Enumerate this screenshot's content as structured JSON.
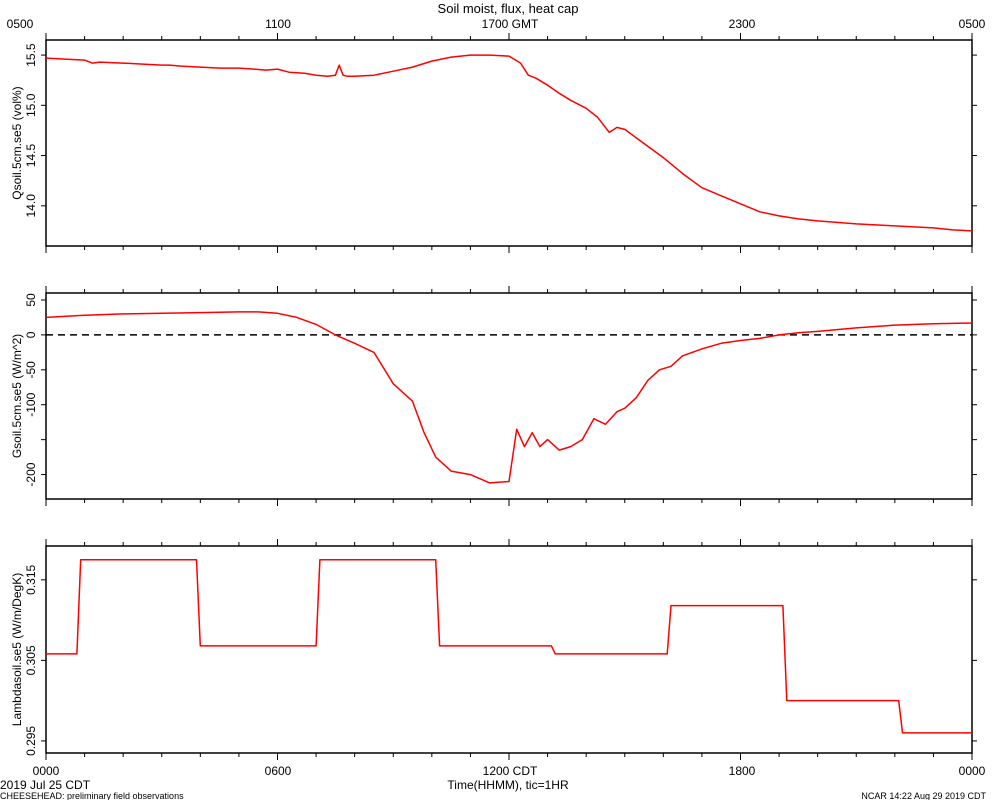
{
  "figure": {
    "title": "Soil moist, flux, heat cap",
    "top_axis_ticks": [
      "0500",
      "1100",
      "1700 GMT",
      "2300",
      "0500"
    ],
    "bottom_axis_ticks": [
      "0000",
      "0600",
      "1200 CDT",
      "1800",
      "0000"
    ],
    "xlabel": "Time(HHMM), tic=1HR",
    "date_label": "2019 Jul 25 CDT",
    "footer_left": "CHEESEHEAD: preliminary field observations",
    "footer_right": "NCAR 14:22 Aug 29 2019 CDT",
    "line_color": "#ff0000",
    "axis_color": "#000000"
  },
  "chart_data": [
    {
      "type": "line",
      "ylabel": "Qsoil.5cm.se5 (vol%)",
      "ylim": [
        13.6,
        15.65
      ],
      "yticks": [
        14.0,
        14.5,
        15.0,
        15.5
      ],
      "ytick_labels": [
        "14.0",
        "14.5",
        "15.0",
        "15.5"
      ],
      "x_hours": [
        0,
        0.5,
        1,
        1.2,
        1.4,
        2,
        2.5,
        3,
        3.2,
        3.5,
        4,
        4.5,
        5,
        5.4,
        5.7,
        6,
        6.3,
        6.7,
        7,
        7.3,
        7.5,
        7.6,
        7.7,
        7.8,
        8,
        8.5,
        9,
        9.5,
        10,
        10.5,
        11,
        11.5,
        12,
        12.3,
        12.5,
        12.7,
        13,
        13.3,
        13.6,
        14,
        14.3,
        14.6,
        14.8,
        15,
        15.5,
        16,
        16.5,
        17,
        17.5,
        18,
        18.5,
        19,
        19.5,
        20,
        21,
        22,
        23,
        23.5,
        24
      ],
      "values": [
        15.47,
        15.46,
        15.45,
        15.42,
        15.43,
        15.42,
        15.41,
        15.4,
        15.4,
        15.39,
        15.38,
        15.37,
        15.37,
        15.36,
        15.35,
        15.36,
        15.33,
        15.32,
        15.3,
        15.29,
        15.3,
        15.4,
        15.3,
        15.29,
        15.29,
        15.3,
        15.34,
        15.38,
        15.44,
        15.48,
        15.5,
        15.5,
        15.49,
        15.42,
        15.3,
        15.27,
        15.2,
        15.12,
        15.05,
        14.97,
        14.88,
        14.73,
        14.78,
        14.76,
        14.62,
        14.48,
        14.32,
        14.18,
        14.1,
        14.02,
        13.94,
        13.9,
        13.87,
        13.85,
        13.82,
        13.8,
        13.78,
        13.76,
        13.75
      ]
    },
    {
      "type": "line",
      "ylabel": "Gsoil.5cm.se5 (W/m^2)",
      "ylim": [
        -235,
        60
      ],
      "yticks": [
        -200,
        -150,
        -100,
        -50,
        0,
        50
      ],
      "ytick_labels": [
        "-200",
        "",
        "-100",
        "-50",
        "0",
        "50"
      ],
      "reference_line": 0,
      "x_hours": [
        0,
        1,
        2,
        3,
        4,
        5,
        5.5,
        6,
        6.5,
        7,
        7.5,
        8,
        8.5,
        9,
        9.5,
        9.8,
        10.1,
        10.5,
        11,
        11.5,
        12,
        12.2,
        12.4,
        12.6,
        12.8,
        13,
        13.3,
        13.6,
        13.9,
        14.2,
        14.5,
        14.8,
        15,
        15.3,
        15.6,
        15.9,
        16.2,
        16.5,
        17,
        17.5,
        18,
        18.5,
        19,
        19.5,
        20,
        21,
        22,
        23,
        24
      ],
      "values": [
        25,
        28,
        30,
        31,
        32,
        33,
        33,
        31,
        25,
        15,
        0,
        -12,
        -25,
        -70,
        -95,
        -140,
        -175,
        -195,
        -200,
        -212,
        -210,
        -135,
        -160,
        -140,
        -160,
        -150,
        -165,
        -160,
        -150,
        -120,
        -128,
        -110,
        -105,
        -90,
        -65,
        -50,
        -45,
        -30,
        -20,
        -12,
        -8,
        -5,
        0,
        3,
        5,
        10,
        14,
        16,
        17
      ]
    },
    {
      "type": "line",
      "ylabel": "Lambdasoil.se5 (W/m/DegK)",
      "ylim": [
        0.2935,
        0.3192
      ],
      "yticks": [
        0.295,
        0.305,
        0.315
      ],
      "ytick_labels": [
        "0.295",
        "0.305",
        "0.315"
      ],
      "x_hours": [
        0,
        0.8,
        0.9,
        3.9,
        4.0,
        7.0,
        7.1,
        10.1,
        10.2,
        13.1,
        13.2,
        16.1,
        16.2,
        19.1,
        19.2,
        22.1,
        22.2,
        24
      ],
      "values": [
        0.3058,
        0.3058,
        0.3175,
        0.3175,
        0.3068,
        0.3068,
        0.3175,
        0.3175,
        0.3068,
        0.3068,
        0.3058,
        0.3058,
        0.3118,
        0.3118,
        0.3,
        0.3,
        0.296,
        0.296
      ]
    }
  ]
}
